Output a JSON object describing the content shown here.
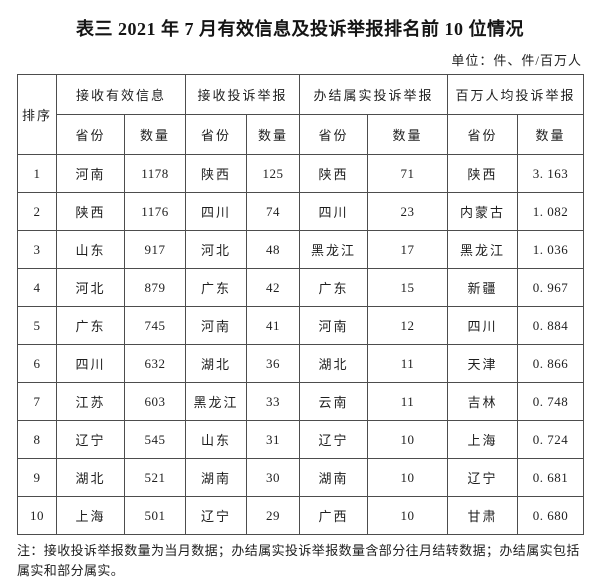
{
  "title": "表三 2021 年 7 月有效信息及投诉举报排名前 10 位情况",
  "unit": "单位：件、件/百万人",
  "table": {
    "rank_header": "排序",
    "groups": [
      {
        "label": "接收有效信息",
        "sub": [
          "省份",
          "数量"
        ]
      },
      {
        "label": "接收投诉举报",
        "sub": [
          "省份",
          "数量"
        ]
      },
      {
        "label": "办结属实投诉举报",
        "sub": [
          "省份",
          "数量"
        ]
      },
      {
        "label": "百万人均投诉举报",
        "sub": [
          "省份",
          "数量"
        ]
      }
    ],
    "rows": [
      [
        "1",
        "河南",
        "1178",
        "陕西",
        "125",
        "陕西",
        "71",
        "陕西",
        "3. 163"
      ],
      [
        "2",
        "陕西",
        "1176",
        "四川",
        "74",
        "四川",
        "23",
        "内蒙古",
        "1. 082"
      ],
      [
        "3",
        "山东",
        "917",
        "河北",
        "48",
        "黑龙江",
        "17",
        "黑龙江",
        "1. 036"
      ],
      [
        "4",
        "河北",
        "879",
        "广东",
        "42",
        "广东",
        "15",
        "新疆",
        "0. 967"
      ],
      [
        "5",
        "广东",
        "745",
        "河南",
        "41",
        "河南",
        "12",
        "四川",
        "0. 884"
      ],
      [
        "6",
        "四川",
        "632",
        "湖北",
        "36",
        "湖北",
        "11",
        "天津",
        "0. 866"
      ],
      [
        "7",
        "江苏",
        "603",
        "黑龙江",
        "33",
        "云南",
        "11",
        "吉林",
        "0. 748"
      ],
      [
        "8",
        "辽宁",
        "545",
        "山东",
        "31",
        "辽宁",
        "10",
        "上海",
        "0. 724"
      ],
      [
        "9",
        "湖北",
        "521",
        "湖南",
        "30",
        "湖南",
        "10",
        "辽宁",
        "0. 681"
      ],
      [
        "10",
        "上海",
        "501",
        "辽宁",
        "29",
        "广西",
        "10",
        "甘肃",
        "0. 680"
      ]
    ]
  },
  "note": {
    "line1": "注：接收投诉举报数量为当月数据；办结属实投诉举报数量含部分往月结转数据；办结属实包括",
    "line2": "属实和部分属实。"
  }
}
